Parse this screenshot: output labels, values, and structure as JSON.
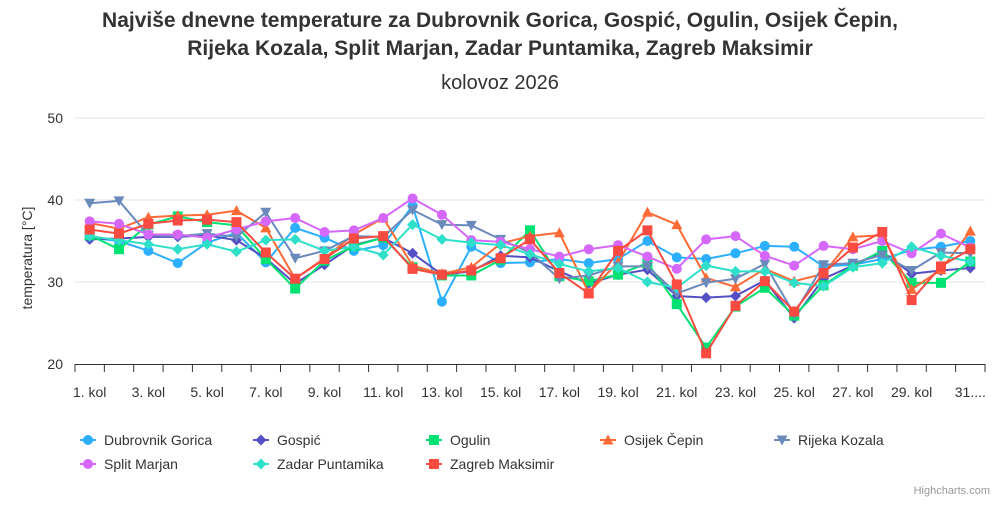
{
  "chart_data": {
    "type": "line",
    "title": "Najviše dnevne temperature za Dubrovnik Gorica, Gospić, Ogulin, Osijek Čepin, Rijeka Kozala, Split Marjan, Zadar Puntamika, Zagreb Maksimir",
    "subtitle": "kolovoz 2026",
    "xlabel": "",
    "ylabel": "temperatura [°C]",
    "ylim": [
      20,
      50
    ],
    "yticks": [
      20,
      30,
      40,
      50
    ],
    "grid": true,
    "legend_position": "bottom",
    "credits": "Highcharts.com",
    "categories": [
      "1. kol",
      "2. kol",
      "3. kol",
      "4. kol",
      "5. kol",
      "6. kol",
      "7. kol",
      "8. kol",
      "9. kol",
      "10. kol",
      "11. kol",
      "12. kol",
      "13. kol",
      "14. kol",
      "15. kol",
      "16. kol",
      "17. kol",
      "18. kol",
      "19. kol",
      "20. kol",
      "21. kol",
      "22. kol",
      "23. kol",
      "24. kol",
      "25. kol",
      "26. kol",
      "27. kol",
      "28. kol",
      "29. kol",
      "30. kol",
      "31. kol"
    ],
    "x_tick_labels": [
      "1. kol",
      "3. kol",
      "5. kol",
      "7. kol",
      "9. kol",
      "11. kol",
      "13. kol",
      "15. kol",
      "17. kol",
      "19. kol",
      "21. kol",
      "23. kol",
      "25. kol",
      "27. kol",
      "29. kol",
      "31...."
    ],
    "series": [
      {
        "name": "Dubrovnik Gorica",
        "color": "#2caffe",
        "marker": "circle",
        "values": [
          35.4,
          35.0,
          33.8,
          32.3,
          34.8,
          36.0,
          32.4,
          36.6,
          35.4,
          33.8,
          34.5,
          39.3,
          27.6,
          34.3,
          32.3,
          32.4,
          32.8,
          32.3,
          32.8,
          35.0,
          33.0,
          32.8,
          33.5,
          34.4,
          34.3,
          31.9,
          32.1,
          32.8,
          33.9,
          34.3,
          35.0
        ]
      },
      {
        "name": "Gospić",
        "color": "#544fc5",
        "marker": "diamond",
        "values": [
          35.2,
          35.3,
          35.5,
          35.5,
          35.7,
          35.1,
          32.9,
          29.8,
          32.1,
          34.5,
          35.4,
          33.5,
          30.9,
          31.3,
          33.2,
          33.0,
          31.3,
          29.8,
          30.9,
          31.5,
          28.3,
          28.1,
          28.3,
          30.2,
          25.6,
          30.4,
          32.0,
          33.7,
          31.0,
          31.4,
          31.7
        ]
      },
      {
        "name": "Ogulin",
        "color": "#00e272",
        "marker": "square",
        "values": [
          35.7,
          34.0,
          37.0,
          38.0,
          37.3,
          36.9,
          32.8,
          29.2,
          32.6,
          34.4,
          35.4,
          31.8,
          30.8,
          30.8,
          32.7,
          36.3,
          30.7,
          30.1,
          30.9,
          32.3,
          27.3,
          22.0,
          27.0,
          29.3,
          25.9,
          29.6,
          32.0,
          33.8,
          29.9,
          29.9,
          32.5
        ]
      },
      {
        "name": "Osijek Čepin",
        "color": "#fe6a35",
        "marker": "triangle",
        "values": [
          37.2,
          36.5,
          37.9,
          38.1,
          38.2,
          38.7,
          36.6,
          30.4,
          32.9,
          35.8,
          37.8,
          32.0,
          31.0,
          31.8,
          34.7,
          35.6,
          36.0,
          28.7,
          32.4,
          38.5,
          37.0,
          30.5,
          29.4,
          31.6,
          30.1,
          31.0,
          35.5,
          35.7,
          29.1,
          31.5,
          36.2
        ]
      },
      {
        "name": "Rijeka Kozala",
        "color": "#6b8abc",
        "marker": "triangle-down",
        "values": [
          39.6,
          39.9,
          35.7,
          35.6,
          35.9,
          35.5,
          38.5,
          32.9,
          33.8,
          35.6,
          35.5,
          38.8,
          37.0,
          36.9,
          35.2,
          33.6,
          30.4,
          30.8,
          31.9,
          31.9,
          28.6,
          29.9,
          30.4,
          32.2,
          26.1,
          32.1,
          32.3,
          33.3,
          31.4,
          33.6,
          33.5
        ]
      },
      {
        "name": "Split Marjan",
        "color": "#d568fb",
        "marker": "circle",
        "values": [
          37.4,
          37.1,
          35.8,
          35.8,
          35.4,
          36.4,
          37.4,
          37.8,
          36.1,
          36.3,
          37.8,
          40.2,
          38.2,
          35.1,
          34.9,
          34.0,
          33.1,
          34.0,
          34.5,
          33.1,
          31.6,
          35.2,
          35.6,
          33.2,
          32.0,
          34.4,
          34.0,
          35.0,
          33.5,
          35.9,
          34.2
        ]
      },
      {
        "name": "Zadar Puntamika",
        "color": "#2ee0ca",
        "marker": "diamond",
        "values": [
          35.6,
          35.1,
          34.6,
          34.0,
          34.6,
          33.7,
          35.1,
          35.2,
          33.8,
          34.3,
          33.3,
          37.0,
          35.2,
          34.8,
          34.5,
          33.4,
          32.2,
          31.3,
          31.7,
          30.0,
          29.3,
          32.0,
          31.3,
          31.3,
          29.9,
          29.5,
          31.8,
          32.3,
          34.3,
          33.2,
          32.5
        ]
      },
      {
        "name": "Zagreb Maksimir",
        "color": "#fa4b42",
        "marker": "square",
        "values": [
          36.4,
          35.9,
          37.1,
          37.5,
          37.6,
          37.3,
          33.6,
          30.4,
          32.8,
          35.3,
          35.6,
          31.6,
          30.9,
          31.4,
          32.9,
          35.2,
          31.1,
          28.6,
          33.8,
          36.3,
          29.7,
          21.3,
          27.1,
          30.1,
          26.4,
          31.1,
          34.2,
          36.1,
          27.8,
          31.9,
          34.0
        ]
      }
    ]
  }
}
